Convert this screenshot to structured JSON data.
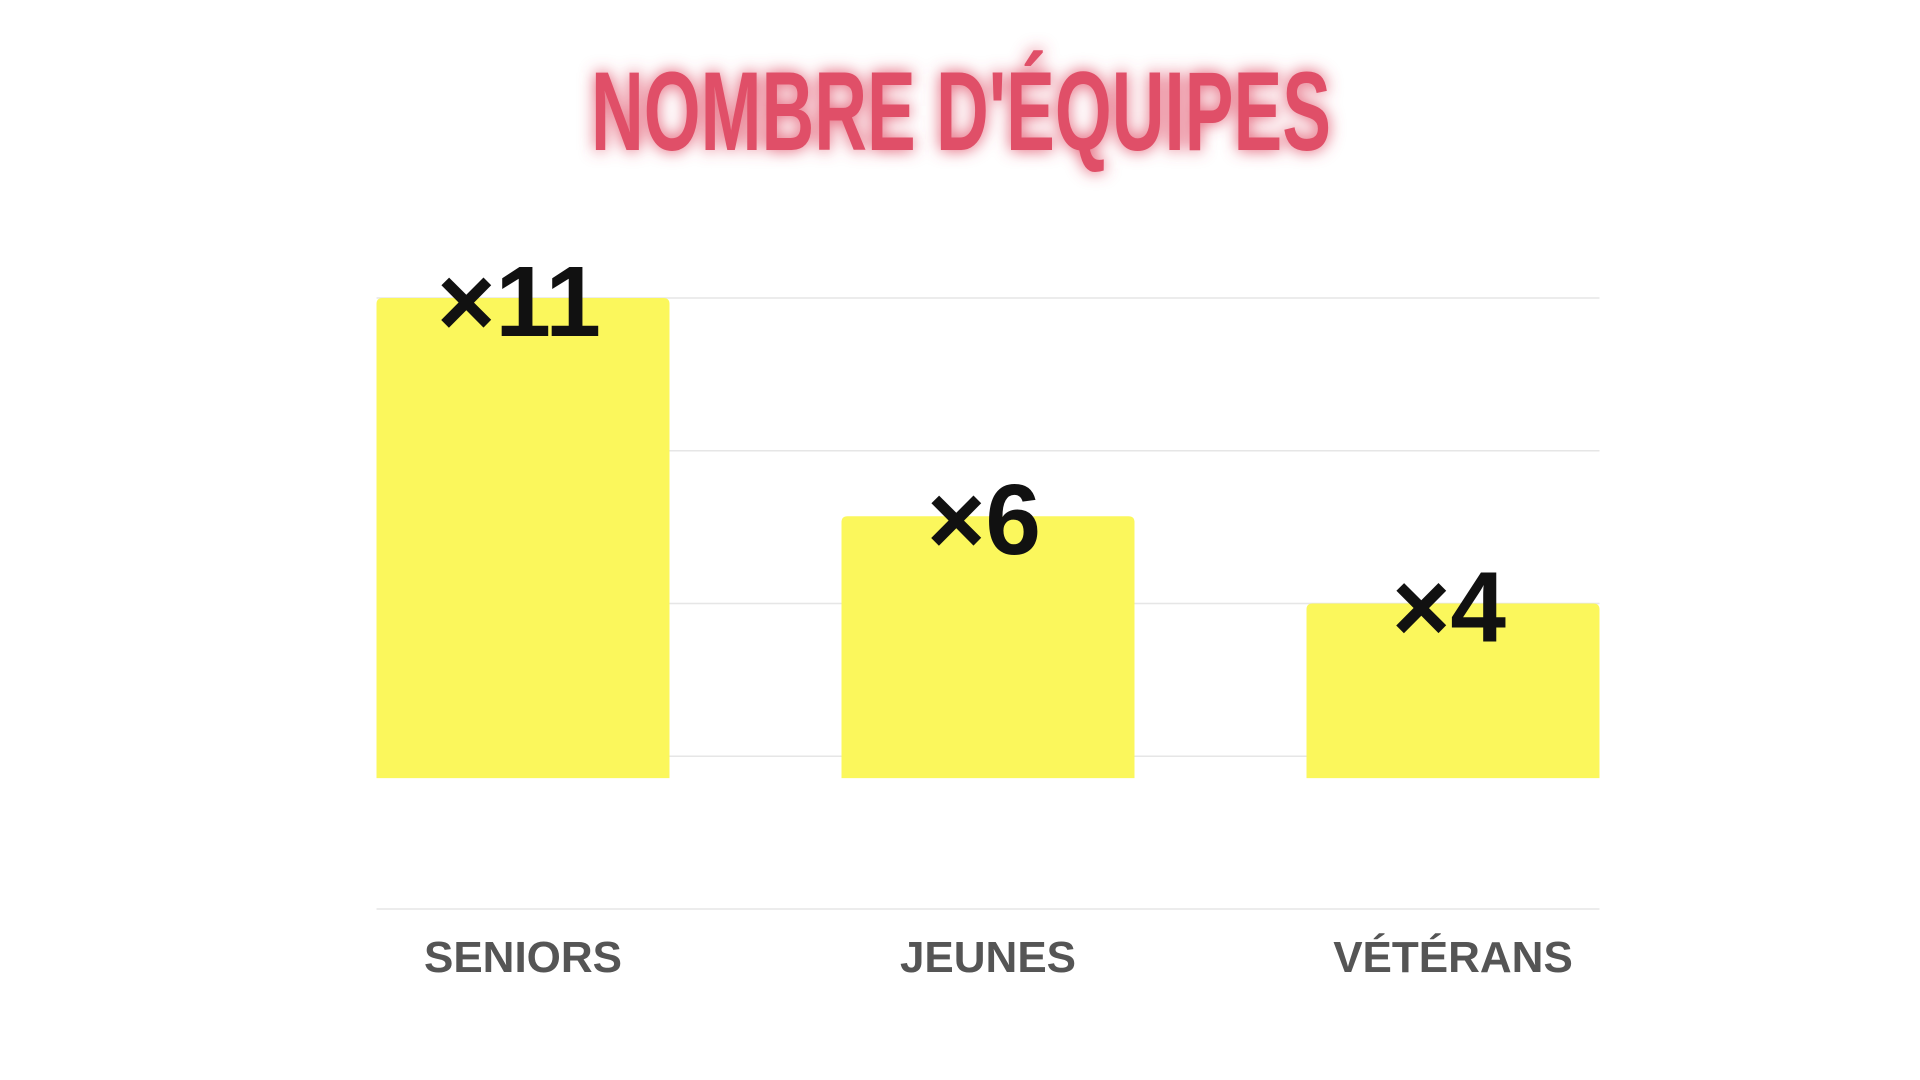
{
  "chart_data": {
    "type": "bar",
    "title": "NOMBRE D'ÉQUIPES",
    "categories": [
      "SENIORS",
      "JEUNES",
      "VÉTÉRANS"
    ],
    "values": [
      11,
      6,
      4
    ],
    "value_labels": [
      "×11",
      "×6",
      "×4"
    ],
    "color": "#fbf75c",
    "ylim": [
      -3,
      11
    ],
    "yticks": [
      -3,
      0.5,
      4,
      7.5,
      11
    ],
    "grid": true
  }
}
